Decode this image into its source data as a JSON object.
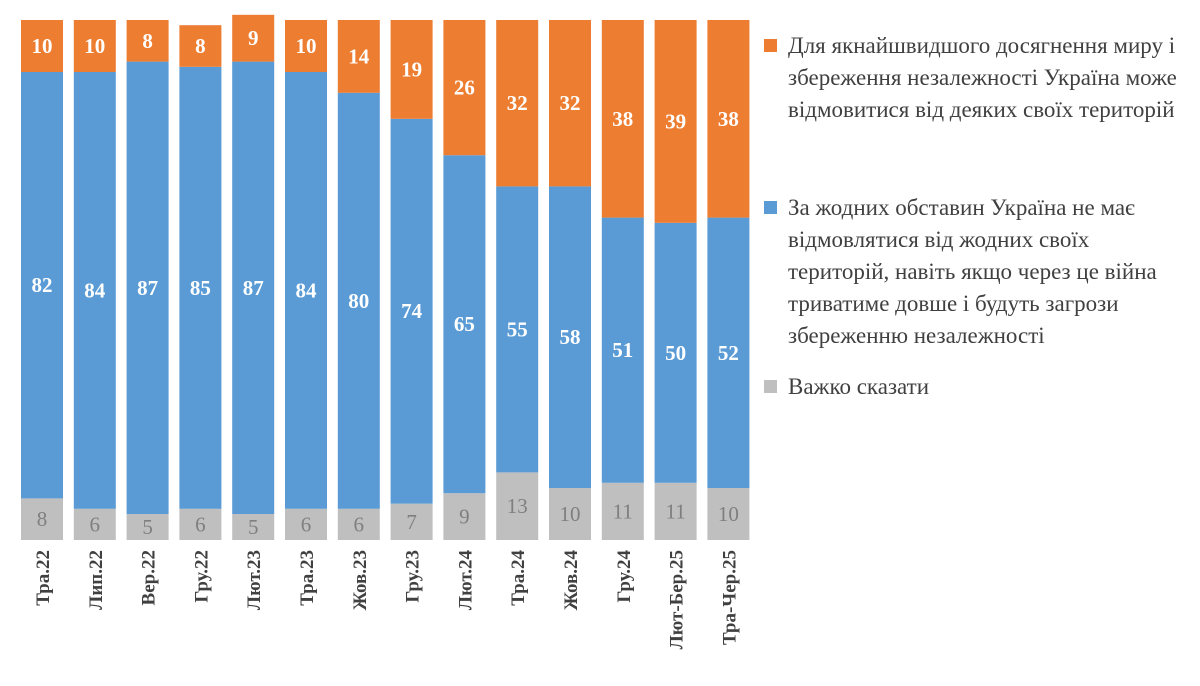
{
  "chart_data": {
    "type": "bar",
    "stacked": true,
    "categories": [
      "Тра.22",
      "Лип.22",
      "Вер.22",
      "Гру.22",
      "Лют.23",
      "Тра.23",
      "Жов.23",
      "Гру.23",
      "Лют.24",
      "Тра.24",
      "Жов.24",
      "Гру.24",
      "Лют-Бер.25",
      "Тра-Чер.25"
    ],
    "series": [
      {
        "name": "Для якнайшвидшого досягнення миру і збереження незалежності Україна може відмовитися від деяких своїх територій",
        "color": "#ed7d31",
        "values": [
          10,
          10,
          8,
          8,
          9,
          10,
          14,
          19,
          26,
          32,
          32,
          38,
          39,
          38
        ]
      },
      {
        "name": "За жодних обставин Україна не має відмовлятися від жодних своїх територій, навіть якщо через це війна триватиме довше і будуть загрози збереженню незалежності",
        "color": "#5b9bd5",
        "values": [
          82,
          84,
          87,
          85,
          87,
          84,
          80,
          74,
          65,
          55,
          58,
          51,
          50,
          52
        ]
      },
      {
        "name": "Важко сказати",
        "color": "#bfbfbf",
        "values": [
          8,
          6,
          5,
          6,
          5,
          6,
          6,
          7,
          9,
          13,
          10,
          11,
          11,
          10
        ]
      }
    ],
    "ylim": [
      0,
      100
    ],
    "grid": false,
    "legend_position": "right",
    "data_labels": true
  }
}
